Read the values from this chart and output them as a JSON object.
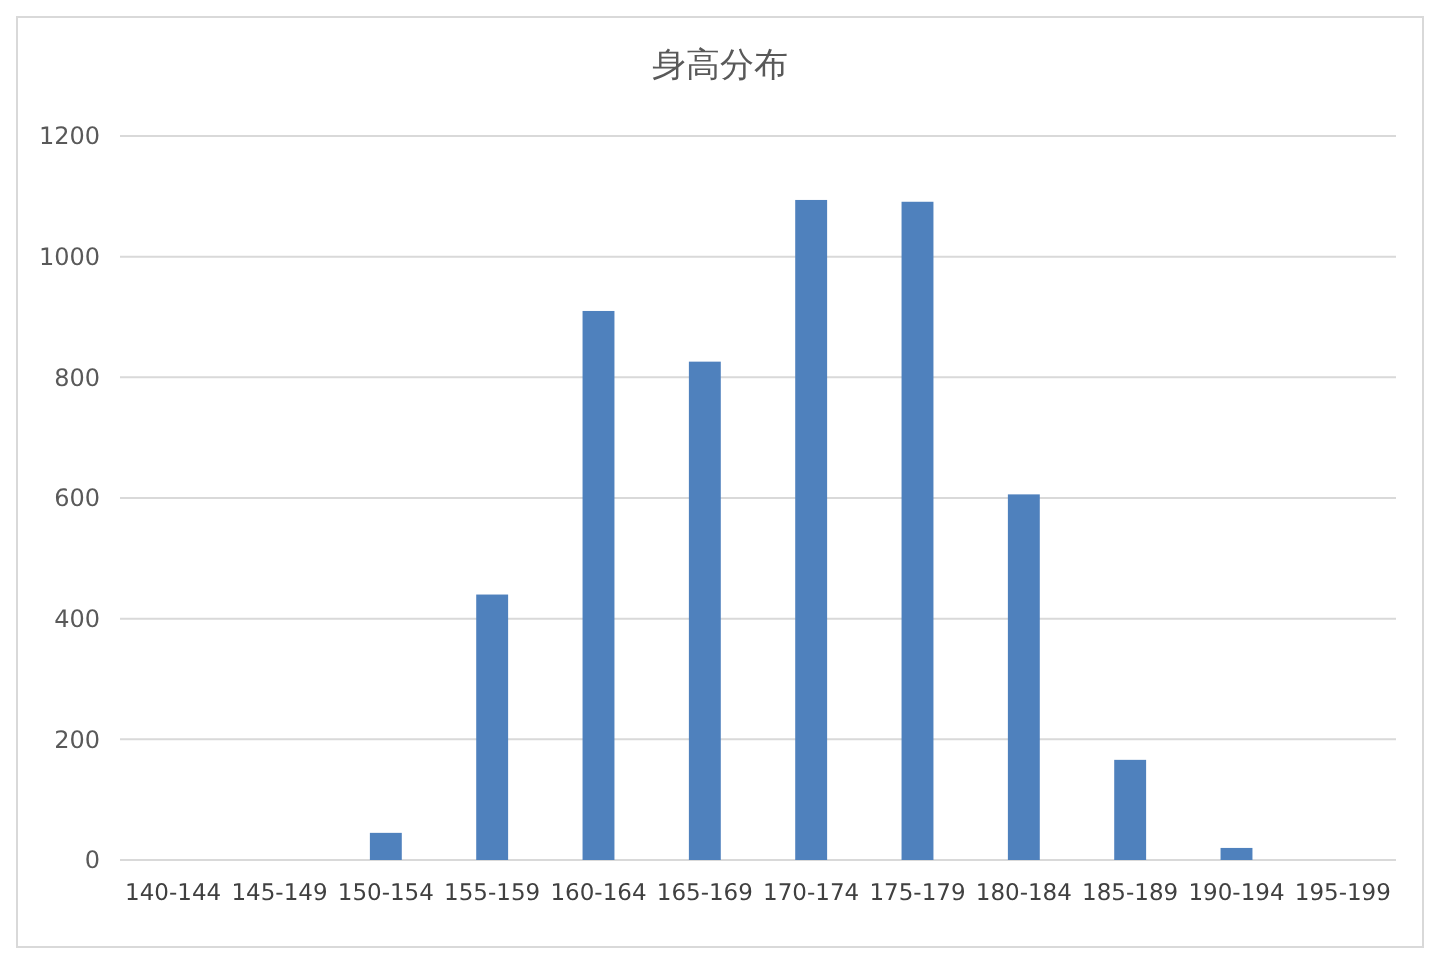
{
  "chart_data": {
    "type": "bar",
    "title": "身高分布",
    "categories": [
      "140-144",
      "145-149",
      "150-154",
      "155-159",
      "160-164",
      "165-169",
      "170-174",
      "175-179",
      "180-184",
      "185-189",
      "190-194",
      "195-199"
    ],
    "values": [
      0,
      0,
      45,
      440,
      910,
      826,
      1094,
      1091,
      606,
      166,
      20,
      0
    ],
    "color": "#4f81bd",
    "ylim": [
      0,
      1200
    ],
    "yticks": [
      0,
      200,
      400,
      600,
      800,
      1000,
      1200
    ],
    "grid": "y"
  }
}
